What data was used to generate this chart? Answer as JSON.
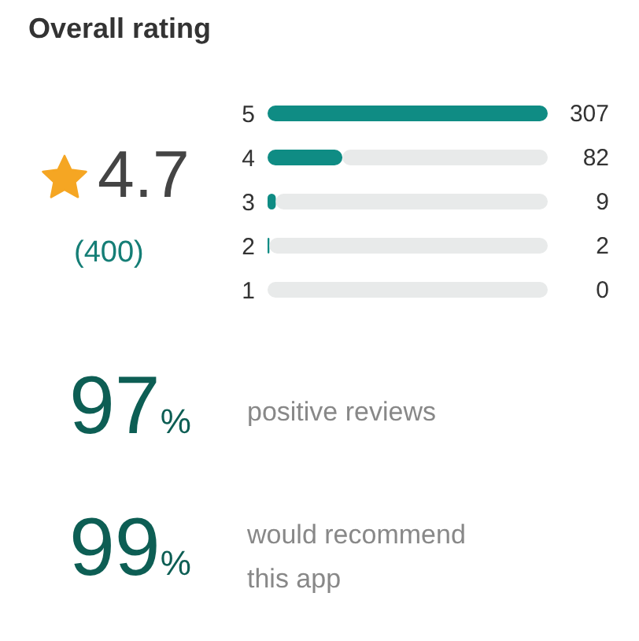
{
  "chart_data": {
    "type": "bar",
    "orientation": "horizontal",
    "stacked": true,
    "title": "Overall rating",
    "categories": [
      "5",
      "4",
      "3",
      "2",
      "1"
    ],
    "series": [
      {
        "color": "#0f8c84",
        "values": [
          307,
          82,
          9,
          2,
          0
        ],
        "value_labels": [
          "307",
          "82",
          "9",
          "2",
          "0"
        ]
      },
      {
        "color": "#e8eaea",
        "values": [
          0,
          225,
          298,
          305,
          307
        ]
      }
    ],
    "xlim": [
      0,
      307
    ],
    "tick_labels": "y",
    "annotations": [
      "4.7",
      "(400)",
      "97%",
      "positive reviews",
      "99%",
      "would recommend this app"
    ]
  }
}
